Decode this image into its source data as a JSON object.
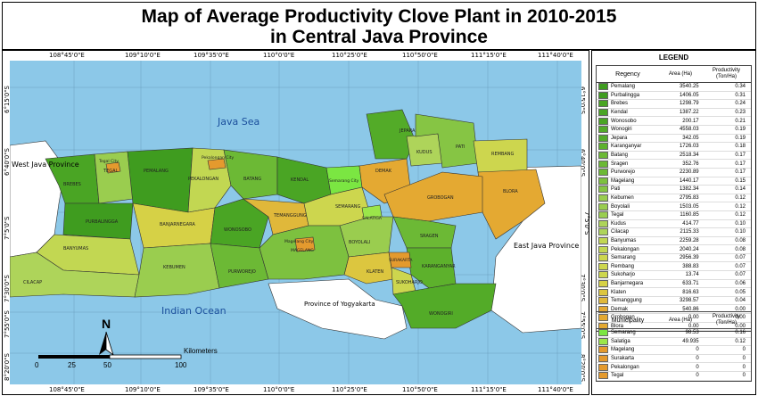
{
  "title": {
    "line1": "Map of Average Productivity Clove Plant in 2010-2015",
    "line2": "in Central Java Province"
  },
  "map": {
    "sea_north": "Java Sea",
    "sea_south": "Indian Ocean",
    "west_province": "West Java Province",
    "east_province": "East Java Province",
    "yogyakarta": "Province of Yogyakarta",
    "north_arrow": "N",
    "scale_unit": "Kilometers",
    "scale_ticks": [
      "0",
      "25",
      "50",
      "100"
    ],
    "lon_ticks": [
      "108°45'0\"E",
      "109°10'0\"E",
      "109°35'0\"E",
      "110°0'0\"E",
      "110°25'0\"E",
      "110°50'0\"E",
      "111°15'0\"E",
      "111°40'0\"E"
    ],
    "lat_ticks": [
      "6°15'0\"S",
      "6°40'0\"S",
      "7°5'0\"S",
      "7°30'0\"S",
      "7°55'0\"S",
      "8°20'0\"S"
    ],
    "region_labels": {
      "brebes": "BREBES",
      "tegal": "TEGAL",
      "tegal_city": "Tegal City",
      "pemalang": "PEMALANG",
      "pekalongan": "PEKALONGAN",
      "pekalongan_city": "Pekalongan City",
      "batang": "BATANG",
      "kendal": "KENDAL",
      "semarang_city": "Semarang City",
      "semarang": "SEMARANG",
      "demak": "DEMAK",
      "jepara": "JEPARA",
      "kudus": "KUDUS",
      "pati": "PATI",
      "rembang": "REMBANG",
      "blora": "BLORA",
      "grobogan": "GROBOGAN",
      "purbalingga": "PURBALINGGA",
      "banjarnegara": "BANJARNEGARA",
      "wonosobo": "WONOSOBO",
      "temanggung": "TEMANGGUNG",
      "salatiga": "SALATIGA",
      "boyolali": "BOYOLALI",
      "sragen": "SRAGEN",
      "surakarta": "SURAKARTA",
      "karanganyar": "KARANGANYAR",
      "klaten": "KLATEN",
      "sukoharjo": "SUKOHARJO",
      "wonogiri": "WONOGIRI",
      "cilacap": "CILACAP",
      "banyumas": "BANYUMAS",
      "kebumen": "KEBUMEN",
      "purworejo": "PURWOREJO",
      "magelang_city": "Magelang City",
      "magelang": "MAGELANG"
    }
  },
  "legend": {
    "title": "LEGEND",
    "regency_header": "Regency",
    "municipality_header": "Municipality",
    "area_header": "Area (Ha)",
    "prod_header_1": "Productivity",
    "prod_header_2": "(Ton/Ha)",
    "regencies": [
      {
        "name": "Pemalang",
        "area": "3540.25",
        "prod": "0.34",
        "color": "#3f9c1f"
      },
      {
        "name": "Purbalingga",
        "area": "1406.05",
        "prod": "0.31",
        "color": "#3f9c1f"
      },
      {
        "name": "Brebes",
        "area": "1298.79",
        "prod": "0.24",
        "color": "#4aa524"
      },
      {
        "name": "Kendal",
        "area": "1387.22",
        "prod": "0.23",
        "color": "#4aa524"
      },
      {
        "name": "Wonosobo",
        "area": "200.17",
        "prod": "0.21",
        "color": "#4aa524"
      },
      {
        "name": "Wonogiri",
        "area": "4558.03",
        "prod": "0.19",
        "color": "#53ab28"
      },
      {
        "name": "Jepara",
        "area": "342.05",
        "prod": "0.19",
        "color": "#53ab28"
      },
      {
        "name": "Karanganyar",
        "area": "1726.03",
        "prod": "0.18",
        "color": "#5db12c"
      },
      {
        "name": "Batang",
        "area": "2518.34",
        "prod": "0.17",
        "color": "#6cb935"
      },
      {
        "name": "Sragen",
        "area": "352.76",
        "prod": "0.17",
        "color": "#6cb935"
      },
      {
        "name": "Purworejo",
        "area": "2230.89",
        "prod": "0.17",
        "color": "#6cb935"
      },
      {
        "name": "Magelang",
        "area": "1440.17",
        "prod": "0.15",
        "color": "#7dc13f"
      },
      {
        "name": "Pati",
        "area": "1382.34",
        "prod": "0.14",
        "color": "#86c544"
      },
      {
        "name": "Kebumen",
        "area": "2795.83",
        "prod": "0.12",
        "color": "#9acd4f"
      },
      {
        "name": "Boyolali",
        "area": "1503.05",
        "prod": "0.12",
        "color": "#9acd4f"
      },
      {
        "name": "Tegal",
        "area": "1160.85",
        "prod": "0.12",
        "color": "#9acd4f"
      },
      {
        "name": "Kudus",
        "area": "414.77",
        "prod": "0.10",
        "color": "#aed45a"
      },
      {
        "name": "Cilacap",
        "area": "2115.33",
        "prod": "0.10",
        "color": "#aed45a"
      },
      {
        "name": "Banyumas",
        "area": "2259.28",
        "prod": "0.08",
        "color": "#c2d752"
      },
      {
        "name": "Pekalongan",
        "area": "2040.24",
        "prod": "0.08",
        "color": "#c2d752"
      },
      {
        "name": "Semarang",
        "area": "2956.39",
        "prod": "0.07",
        "color": "#cdd64e"
      },
      {
        "name": "Rembang",
        "area": "388.83",
        "prod": "0.07",
        "color": "#cdd64e"
      },
      {
        "name": "Sukoharjo",
        "area": "13.74",
        "prod": "0.07",
        "color": "#cdd64e"
      },
      {
        "name": "Banjarnegara",
        "area": "633.71",
        "prod": "0.06",
        "color": "#d6d146"
      },
      {
        "name": "Klaten",
        "area": "816.63",
        "prod": "0.05",
        "color": "#dcc63f"
      },
      {
        "name": "Temanggung",
        "area": "3298.57",
        "prod": "0.04",
        "color": "#e0b83a"
      },
      {
        "name": "Demak",
        "area": "540.86",
        "prod": "0.00",
        "color": "#e4a932"
      },
      {
        "name": "Grobogan",
        "area": "0.00",
        "prod": "0.00",
        "color": "#e4a932"
      },
      {
        "name": "Blora",
        "area": "0.00",
        "prod": "0.00",
        "color": "#e4a932"
      }
    ],
    "municipalities": [
      {
        "name": "Semarang",
        "area": "98.53",
        "prod": "0.16",
        "color": "#7be642"
      },
      {
        "name": "Salatiga",
        "area": "49.935",
        "prod": "0.12",
        "color": "#9be64a"
      },
      {
        "name": "Magelang",
        "area": "0",
        "prod": "0",
        "color": "#e49a2e"
      },
      {
        "name": "Surakarta",
        "area": "0",
        "prod": "0",
        "color": "#e49a2e"
      },
      {
        "name": "Pekalongan",
        "area": "0",
        "prod": "0",
        "color": "#e49a2e"
      },
      {
        "name": "Tegal",
        "area": "0",
        "prod": "0",
        "color": "#e49a2e"
      }
    ]
  }
}
